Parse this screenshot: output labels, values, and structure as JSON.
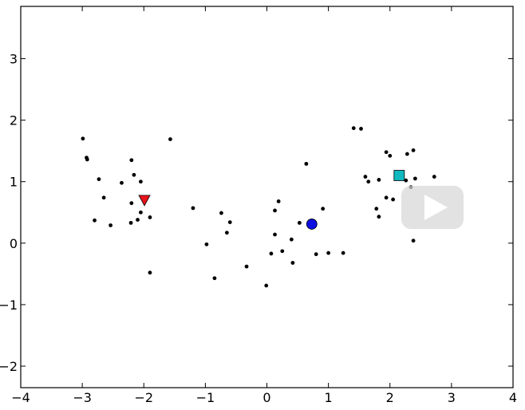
{
  "chart_data": {
    "type": "scatter",
    "title": "",
    "xlabel": "",
    "ylabel": "",
    "xlim": [
      -4,
      4
    ],
    "ylim": [
      -2.35,
      3.85
    ],
    "grid": false,
    "x_ticks": [
      -4,
      -3,
      -2,
      -1,
      0,
      1,
      2,
      3,
      4
    ],
    "y_ticks": [
      -2,
      -1,
      0,
      1,
      2,
      3
    ],
    "x_tick_labels": [
      "−4",
      "−3",
      "−2",
      "−1",
      "0",
      "1",
      "2",
      "3",
      "4"
    ],
    "y_tick_labels": [
      "−2",
      "−1",
      "0",
      "1",
      "2",
      "3"
    ],
    "series": [
      {
        "name": "points",
        "marker": "dot",
        "color": "#000000",
        "points": [
          [
            -2.99,
            1.7
          ],
          [
            -2.93,
            1.39
          ],
          [
            -2.92,
            1.36
          ],
          [
            -2.73,
            1.04
          ],
          [
            -2.65,
            0.74
          ],
          [
            -2.8,
            0.37
          ],
          [
            -2.54,
            0.29
          ],
          [
            -2.36,
            0.98
          ],
          [
            -2.2,
            1.35
          ],
          [
            -2.16,
            1.11
          ],
          [
            -2.05,
            1.0
          ],
          [
            -2.2,
            0.65
          ],
          [
            -2.05,
            0.5
          ],
          [
            -2.1,
            0.38
          ],
          [
            -2.21,
            0.33
          ],
          [
            -1.9,
            0.42
          ],
          [
            -1.57,
            1.69
          ],
          [
            -1.9,
            -0.48
          ],
          [
            -1.2,
            0.57
          ],
          [
            -0.98,
            -0.02
          ],
          [
            -0.74,
            0.49
          ],
          [
            -0.6,
            0.34
          ],
          [
            -0.65,
            0.17
          ],
          [
            -0.85,
            -0.57
          ],
          [
            -0.33,
            -0.38
          ],
          [
            -0.01,
            -0.69
          ],
          [
            0.13,
            0.53
          ],
          [
            0.19,
            0.68
          ],
          [
            0.13,
            0.14
          ],
          [
            0.07,
            -0.17
          ],
          [
            0.25,
            -0.13
          ],
          [
            0.4,
            0.06
          ],
          [
            0.42,
            -0.32
          ],
          [
            0.53,
            0.33
          ],
          [
            0.64,
            1.29
          ],
          [
            0.91,
            0.56
          ],
          [
            0.8,
            -0.18
          ],
          [
            1.0,
            -0.16
          ],
          [
            1.24,
            -0.16
          ],
          [
            1.41,
            1.87
          ],
          [
            1.53,
            1.86
          ],
          [
            1.6,
            1.08
          ],
          [
            1.65,
            1.0
          ],
          [
            1.82,
            1.03
          ],
          [
            1.78,
            0.56
          ],
          [
            1.82,
            0.43
          ],
          [
            1.94,
            0.74
          ],
          [
            2.05,
            0.71
          ],
          [
            1.94,
            1.48
          ],
          [
            2.0,
            1.42
          ],
          [
            2.28,
            1.45
          ],
          [
            2.38,
            1.51
          ],
          [
            2.26,
            1.02
          ],
          [
            2.34,
            0.91
          ],
          [
            2.41,
            1.05
          ],
          [
            2.72,
            1.08
          ],
          [
            2.38,
            0.04
          ]
        ]
      },
      {
        "name": "triangle-marker",
        "marker": "triangle-down",
        "color": "#e8141c",
        "points": [
          [
            -1.99,
            0.7
          ]
        ]
      },
      {
        "name": "circle-marker",
        "marker": "circle",
        "color": "#0d10e0",
        "points": [
          [
            0.73,
            0.31
          ]
        ]
      },
      {
        "name": "square-marker",
        "marker": "square",
        "color": "#10b8bf",
        "points": [
          [
            2.15,
            1.1
          ]
        ]
      }
    ]
  },
  "overlay": {
    "play_icon": "play-icon"
  }
}
